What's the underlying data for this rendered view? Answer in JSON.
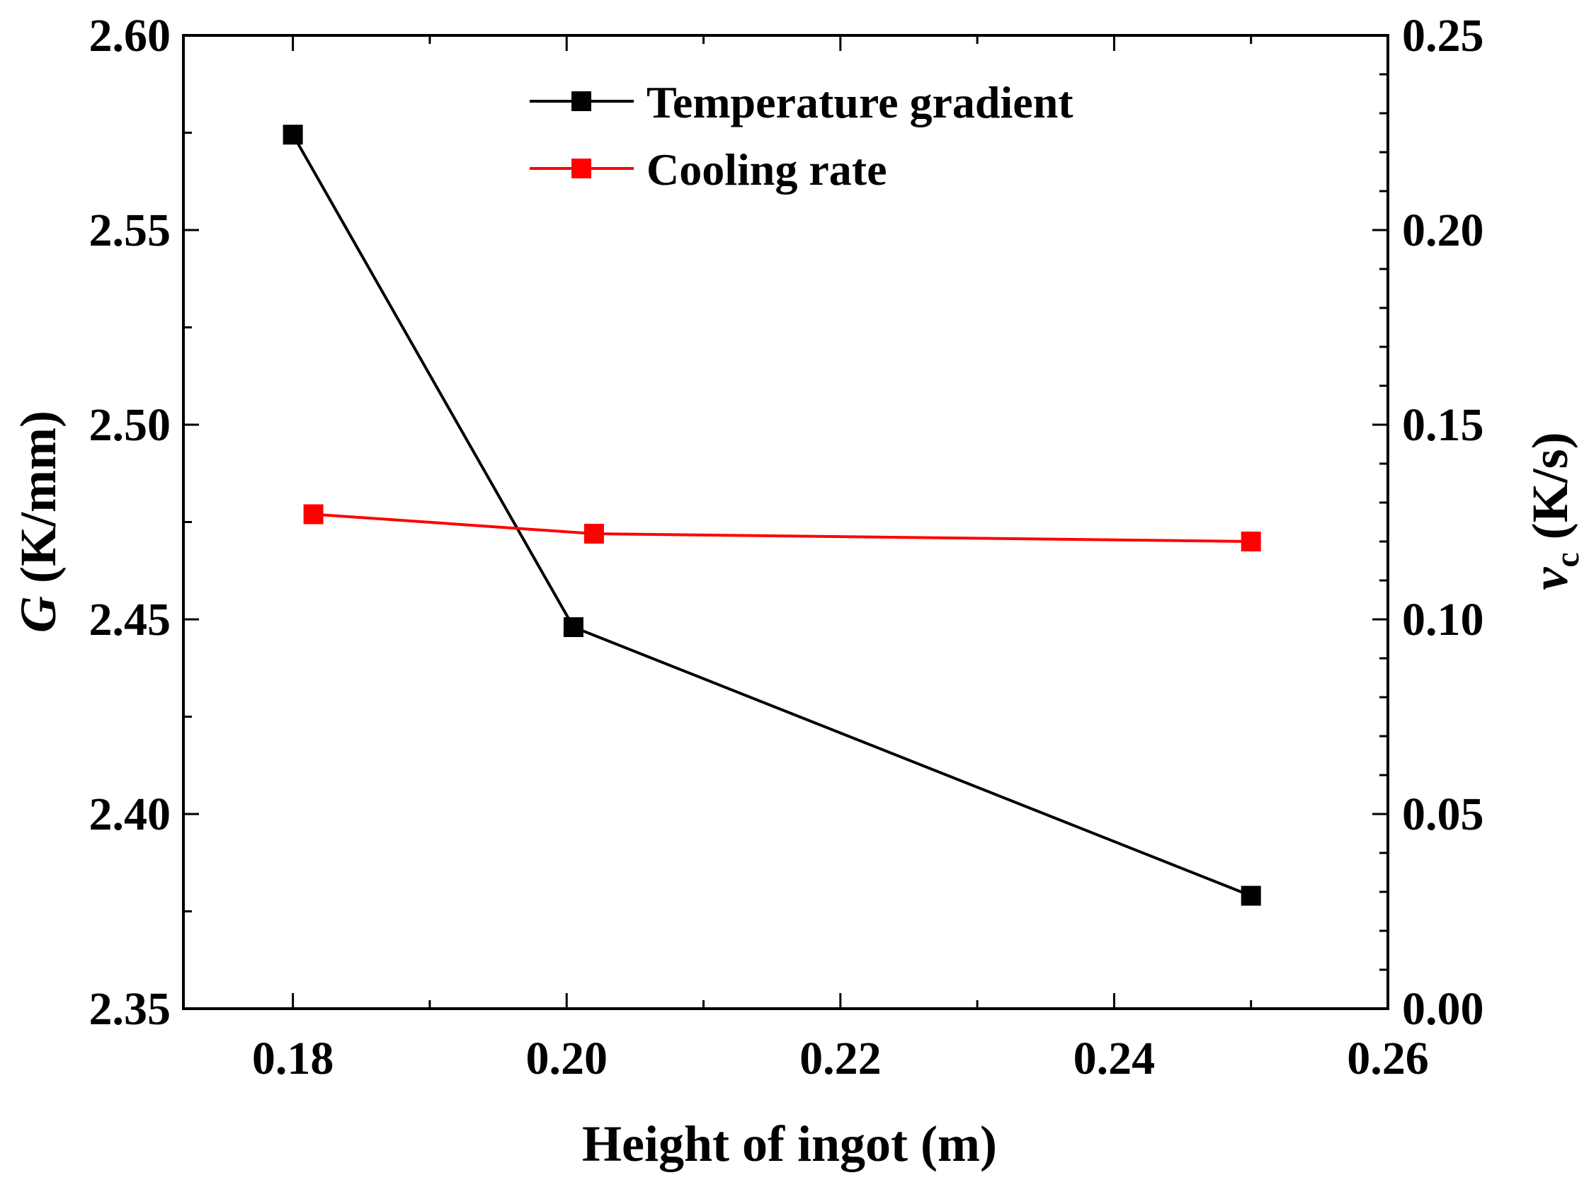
{
  "chart_data": {
    "type": "line",
    "title": "",
    "xlabel": "Height of ingot (m)",
    "ylabel_left": {
      "symbol": "G",
      "unit": " (K/mm)"
    },
    "ylabel_right": {
      "symbol": "v",
      "subscript": "c",
      "unit": " (K/s)"
    },
    "xlim": [
      0.172,
      0.26
    ],
    "ylim_left": [
      2.35,
      2.6
    ],
    "ylim_right": [
      0.0,
      0.25
    ],
    "x_ticks": [
      "0.18",
      "0.20",
      "0.22",
      "0.24",
      "0.26"
    ],
    "y_left_ticks": [
      "2.35",
      "2.40",
      "2.45",
      "2.50",
      "2.55",
      "2.60"
    ],
    "y_right_ticks": [
      "0.00",
      "0.05",
      "0.10",
      "0.15",
      "0.20",
      "0.25"
    ],
    "legend_position": "top-center",
    "series": [
      {
        "name": "Temperature gradient",
        "axis": "left",
        "color": "#000000",
        "x": [
          0.18,
          0.2005,
          0.25
        ],
        "values": [
          2.5745,
          2.448,
          2.379
        ]
      },
      {
        "name": "Cooling rate",
        "axis": "right",
        "color": "#ff0000",
        "x": [
          0.1815,
          0.202,
          0.25
        ],
        "values": [
          0.127,
          0.122,
          0.12
        ]
      }
    ]
  }
}
